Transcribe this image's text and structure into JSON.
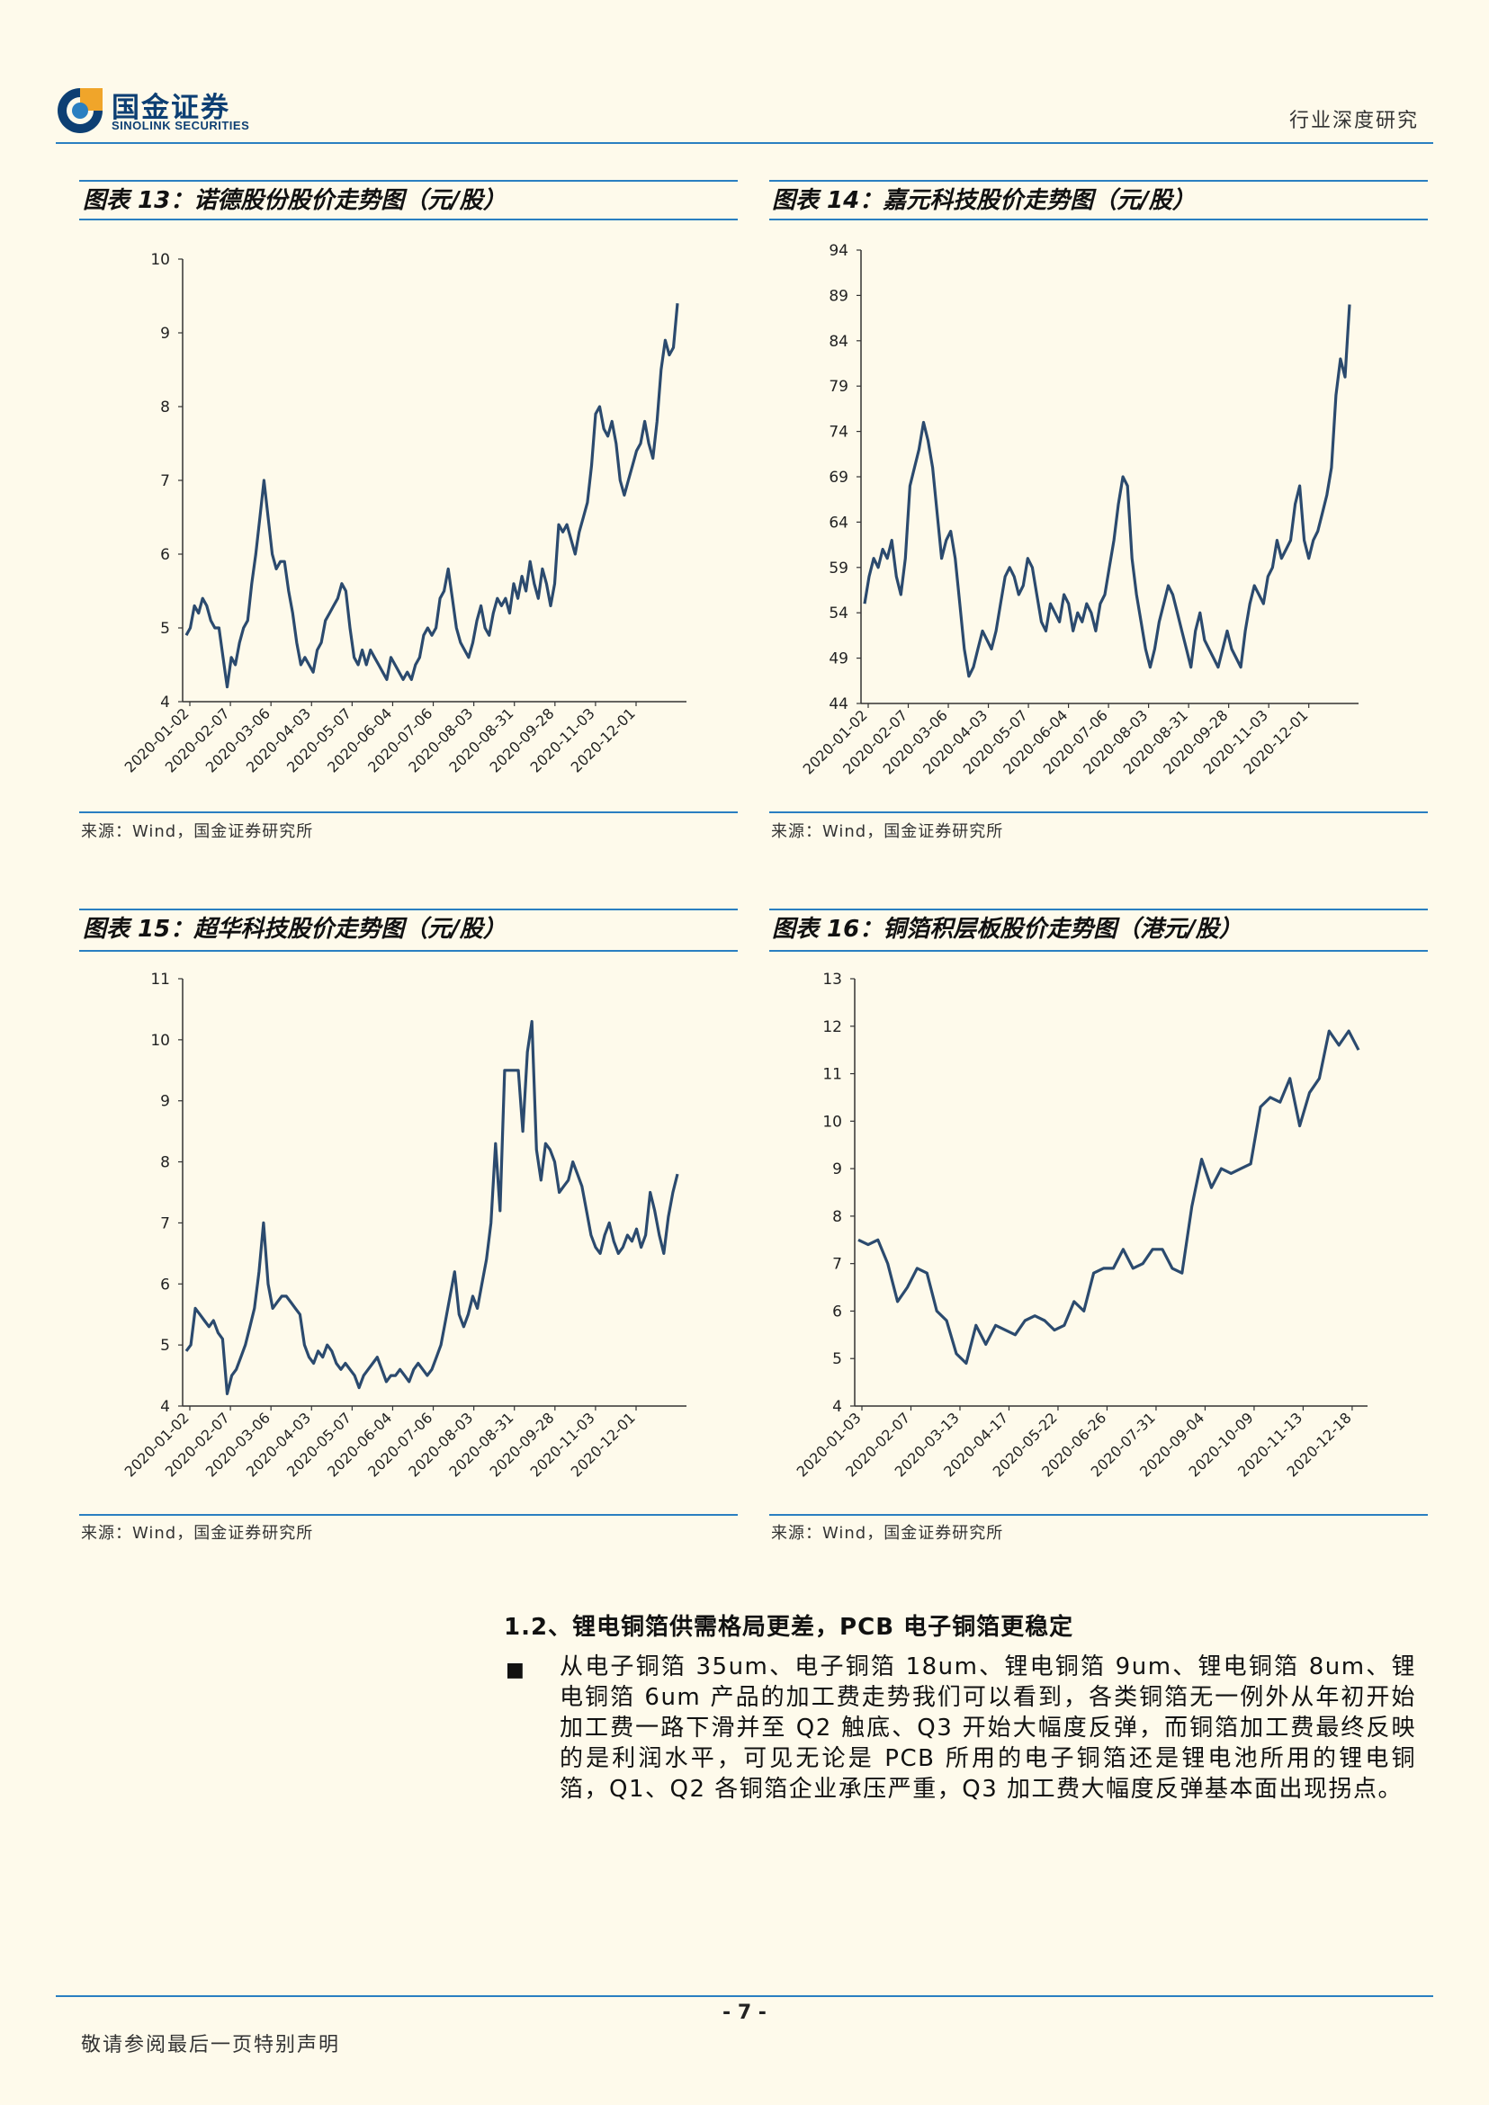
{
  "header": {
    "logo_cn": "国金证券",
    "logo_en": "SINOLINK SECURITIES",
    "right_text": "行业深度研究"
  },
  "charts_meta": [
    {
      "title": "图表 13：诺德股份股价走势图（元/股）",
      "source": "来源：Wind，国金证券研究所"
    },
    {
      "title": "图表 14：嘉元科技股价走势图（元/股）",
      "source": "来源：Wind，国金证券研究所"
    },
    {
      "title": "图表 15：超华科技股价走势图（元/股）",
      "source": "来源：Wind，国金证券研究所"
    },
    {
      "title": "图表 16：铜箔积层板股价走势图（港元/股）",
      "source": "来源：Wind，国金证券研究所"
    }
  ],
  "chart_data": [
    {
      "type": "line",
      "title": "图表 13：诺德股份股价走势图（元/股）",
      "xlabel": "",
      "ylabel": "",
      "ylim": [
        4,
        10
      ],
      "yticks": [
        4,
        5,
        6,
        7,
        8,
        9,
        10
      ],
      "xticks": [
        "2020-01-02",
        "2020-02-07",
        "2020-03-06",
        "2020-04-03",
        "2020-05-07",
        "2020-06-04",
        "2020-07-06",
        "2020-08-03",
        "2020-08-31",
        "2020-09-28",
        "2020-11-03",
        "2020-12-01"
      ],
      "color": "#2b4a6e",
      "values": [
        4.9,
        5.0,
        5.3,
        5.2,
        5.4,
        5.3,
        5.1,
        5.0,
        5.0,
        4.6,
        4.2,
        4.6,
        4.5,
        4.8,
        5.0,
        5.1,
        5.6,
        6.0,
        6.5,
        7.0,
        6.5,
        6.0,
        5.8,
        5.9,
        5.9,
        5.5,
        5.2,
        4.8,
        4.5,
        4.6,
        4.5,
        4.4,
        4.7,
        4.8,
        5.1,
        5.2,
        5.3,
        5.4,
        5.6,
        5.5,
        5.0,
        4.6,
        4.5,
        4.7,
        4.5,
        4.7,
        4.6,
        4.5,
        4.4,
        4.3,
        4.6,
        4.5,
        4.4,
        4.3,
        4.4,
        4.3,
        4.5,
        4.6,
        4.9,
        5.0,
        4.9,
        5.0,
        5.4,
        5.5,
        5.8,
        5.4,
        5.0,
        4.8,
        4.7,
        4.6,
        4.8,
        5.1,
        5.3,
        5.0,
        4.9,
        5.2,
        5.4,
        5.3,
        5.4,
        5.2,
        5.6,
        5.4,
        5.7,
        5.5,
        5.9,
        5.6,
        5.4,
        5.8,
        5.6,
        5.3,
        5.6,
        6.4,
        6.3,
        6.4,
        6.2,
        6.0,
        6.3,
        6.5,
        6.7,
        7.2,
        7.9,
        8.0,
        7.7,
        7.6,
        7.8,
        7.5,
        7.0,
        6.8,
        7.0,
        7.2,
        7.4,
        7.5,
        7.8,
        7.5,
        7.3,
        7.8,
        8.5,
        8.9,
        8.7,
        8.8,
        9.4
      ]
    },
    {
      "type": "line",
      "title": "图表 14：嘉元科技股价走势图（元/股）",
      "xlabel": "",
      "ylabel": "",
      "ylim": [
        44,
        94
      ],
      "yticks": [
        44,
        49,
        54,
        59,
        64,
        69,
        74,
        79,
        84,
        89,
        94
      ],
      "xticks": [
        "2020-01-02",
        "2020-02-07",
        "2020-03-06",
        "2020-04-03",
        "2020-05-07",
        "2020-06-04",
        "2020-07-06",
        "2020-08-03",
        "2020-08-31",
        "2020-09-28",
        "2020-11-03",
        "2020-12-01"
      ],
      "color": "#2b4a6e",
      "values": [
        55,
        58,
        60,
        59,
        61,
        60,
        62,
        58,
        56,
        60,
        68,
        70,
        72,
        75,
        73,
        70,
        65,
        60,
        62,
        63,
        60,
        55,
        50,
        47,
        48,
        50,
        52,
        51,
        50,
        52,
        55,
        58,
        59,
        58,
        56,
        57,
        60,
        59,
        56,
        53,
        52,
        55,
        54,
        53,
        56,
        55,
        52,
        54,
        53,
        55,
        54,
        52,
        55,
        56,
        59,
        62,
        66,
        69,
        68,
        60,
        56,
        53,
        50,
        48,
        50,
        53,
        55,
        57,
        56,
        54,
        52,
        50,
        48,
        52,
        54,
        51,
        50,
        49,
        48,
        50,
        52,
        50,
        49,
        48,
        52,
        55,
        57,
        56,
        55,
        58,
        59,
        62,
        60,
        61,
        62,
        66,
        68,
        62,
        60,
        62,
        63,
        65,
        67,
        70,
        78,
        82,
        80,
        88
      ]
    },
    {
      "type": "line",
      "title": "图表 15：超华科技股价走势图（元/股）",
      "xlabel": "",
      "ylabel": "",
      "ylim": [
        4,
        11
      ],
      "yticks": [
        4,
        5,
        6,
        7,
        8,
        9,
        10,
        11
      ],
      "xticks": [
        "2020-01-02",
        "2020-02-07",
        "2020-03-06",
        "2020-04-03",
        "2020-05-07",
        "2020-06-04",
        "2020-07-06",
        "2020-08-03",
        "2020-08-31",
        "2020-09-28",
        "2020-11-03",
        "2020-12-01"
      ],
      "color": "#2b4a6e",
      "values": [
        4.9,
        5.0,
        5.6,
        5.5,
        5.4,
        5.3,
        5.4,
        5.2,
        5.1,
        4.2,
        4.5,
        4.6,
        4.8,
        5.0,
        5.3,
        5.6,
        6.2,
        7.0,
        6.0,
        5.6,
        5.7,
        5.8,
        5.8,
        5.7,
        5.6,
        5.5,
        5.0,
        4.8,
        4.7,
        4.9,
        4.8,
        5.0,
        4.9,
        4.7,
        4.6,
        4.7,
        4.6,
        4.5,
        4.3,
        4.5,
        4.6,
        4.7,
        4.8,
        4.6,
        4.4,
        4.5,
        4.5,
        4.6,
        4.5,
        4.4,
        4.6,
        4.7,
        4.6,
        4.5,
        4.6,
        4.8,
        5.0,
        5.4,
        5.8,
        6.2,
        5.5,
        5.3,
        5.5,
        5.8,
        5.6,
        6.0,
        6.4,
        7.0,
        8.3,
        7.2,
        9.5,
        9.5,
        9.5,
        9.5,
        8.5,
        9.8,
        10.3,
        8.2,
        7.7,
        8.3,
        8.2,
        8.0,
        7.5,
        7.6,
        7.7,
        8.0,
        7.8,
        7.6,
        7.2,
        6.8,
        6.6,
        6.5,
        6.8,
        7.0,
        6.7,
        6.5,
        6.6,
        6.8,
        6.7,
        6.9,
        6.6,
        6.8,
        7.5,
        7.2,
        6.8,
        6.5,
        7.1,
        7.5,
        7.8
      ]
    },
    {
      "type": "line",
      "title": "图表 16：铜箔积层板股价走势图（港元/股）",
      "xlabel": "",
      "ylabel": "",
      "ylim": [
        4,
        13
      ],
      "yticks": [
        4,
        5,
        6,
        7,
        8,
        9,
        10,
        11,
        12,
        13
      ],
      "xticks": [
        "2020-01-03",
        "2020-02-07",
        "2020-03-13",
        "2020-04-17",
        "2020-05-22",
        "2020-06-26",
        "2020-07-31",
        "2020-09-04",
        "2020-10-09",
        "2020-11-13",
        "2020-12-18"
      ],
      "color": "#2b4a6e",
      "values": [
        7.5,
        7.4,
        7.5,
        7.0,
        6.2,
        6.5,
        6.9,
        6.8,
        6.0,
        5.8,
        5.1,
        4.9,
        5.7,
        5.3,
        5.7,
        5.6,
        5.5,
        5.8,
        5.9,
        5.8,
        5.6,
        5.7,
        6.2,
        6.0,
        6.8,
        6.9,
        6.9,
        7.3,
        6.9,
        7.0,
        7.3,
        7.3,
        6.9,
        6.8,
        8.2,
        9.2,
        8.6,
        9.0,
        8.9,
        9.0,
        9.1,
        10.3,
        10.5,
        10.4,
        10.9,
        9.9,
        10.6,
        10.9,
        11.9,
        11.6,
        11.9,
        11.5
      ]
    }
  ],
  "section": {
    "heading": "1.2、锂电铜箔供需格局更差，PCB 电子铜箔更稳定",
    "bullet": "■",
    "paragraph": "从电子铜箔 35um、电子铜箔 18um、锂电铜箔 9um、锂电铜箔 8um、锂电铜箔 6um 产品的加工费走势我们可以看到，各类铜箔无一例外从年初开始加工费一路下滑并至 Q2 触底、Q3 开始大幅度反弹，而铜箔加工费最终反映的是利润水平，可见无论是 PCB 所用的电子铜箔还是锂电池所用的锂电铜箔，Q1、Q2 各铜箔企业承压严重，Q3 加工费大幅度反弹基本面出现拐点。"
  },
  "footer": {
    "page_number": "- 7 -",
    "disclaimer": "敬请参阅最后一页特别声明"
  }
}
